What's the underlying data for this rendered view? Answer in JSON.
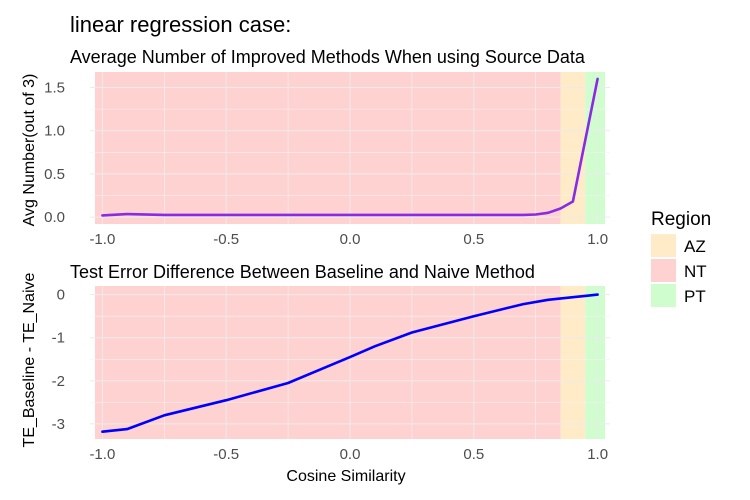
{
  "page_title": "linear regression case:",
  "legend": {
    "title": "Region",
    "items": [
      {
        "key": "AZ",
        "color": "#FFEBC7"
      },
      {
        "key": "NT",
        "color": "#FFD2D2"
      },
      {
        "key": "PT",
        "color": "#CFFDCE"
      }
    ]
  },
  "chart_data": [
    {
      "type": "line",
      "title": "Average Number of Improved Methods When using Source Data",
      "xlabel": "",
      "ylabel": "Avg Number(out of 3)",
      "xlim": [
        -1.05,
        1.05
      ],
      "ylim": [
        -0.08,
        1.68
      ],
      "xticks": [
        -1.0,
        -0.5,
        0.0,
        0.5,
        1.0
      ],
      "xtick_labels": [
        "-1.0",
        "-0.5",
        "0.0",
        "0.5",
        "1.0"
      ],
      "yticks": [
        0.0,
        0.5,
        1.0,
        1.5
      ],
      "ytick_labels": [
        "0.0",
        "0.5",
        "1.0",
        "1.5"
      ],
      "regions": [
        {
          "region": "NT",
          "from": -1.03,
          "to": 0.85
        },
        {
          "region": "AZ",
          "from": 0.85,
          "to": 0.95
        },
        {
          "region": "PT",
          "from": 0.95,
          "to": 1.03
        }
      ],
      "line_color": "#8A2BE2",
      "x": [
        -1.0,
        -0.9,
        -0.75,
        -0.5,
        -0.25,
        0.0,
        0.25,
        0.5,
        0.7,
        0.75,
        0.8,
        0.85,
        0.9,
        1.0
      ],
      "y": [
        0.02,
        0.035,
        0.025,
        0.025,
        0.025,
        0.025,
        0.025,
        0.025,
        0.025,
        0.03,
        0.05,
        0.1,
        0.18,
        1.6
      ]
    },
    {
      "type": "line",
      "title": "Test Error Difference Between Baseline and Naive Method",
      "xlabel": "Cosine Similarity",
      "ylabel": "TE_Baseline - TE_Naive",
      "xlim": [
        -1.05,
        1.05
      ],
      "ylim": [
        -3.35,
        0.2
      ],
      "xticks": [
        -1.0,
        -0.5,
        0.0,
        0.5,
        1.0
      ],
      "xtick_labels": [
        "-1.0",
        "-0.5",
        "0.0",
        "0.5",
        "1.0"
      ],
      "yticks": [
        0,
        -1,
        -2,
        -3
      ],
      "ytick_labels": [
        "0",
        "-1",
        "-2",
        "-3"
      ],
      "regions": [
        {
          "region": "NT",
          "from": -1.03,
          "to": 0.85
        },
        {
          "region": "AZ",
          "from": 0.85,
          "to": 0.95
        },
        {
          "region": "PT",
          "from": 0.95,
          "to": 1.03
        }
      ],
      "line_color": "#0000FF",
      "x": [
        -1.0,
        -0.9,
        -0.75,
        -0.5,
        -0.25,
        0.0,
        0.1,
        0.25,
        0.5,
        0.7,
        0.8,
        0.9,
        0.95,
        1.0
      ],
      "y": [
        -3.18,
        -3.12,
        -2.8,
        -2.45,
        -2.05,
        -1.45,
        -1.2,
        -0.88,
        -0.5,
        -0.22,
        -0.12,
        -0.06,
        -0.03,
        0.0
      ]
    }
  ]
}
